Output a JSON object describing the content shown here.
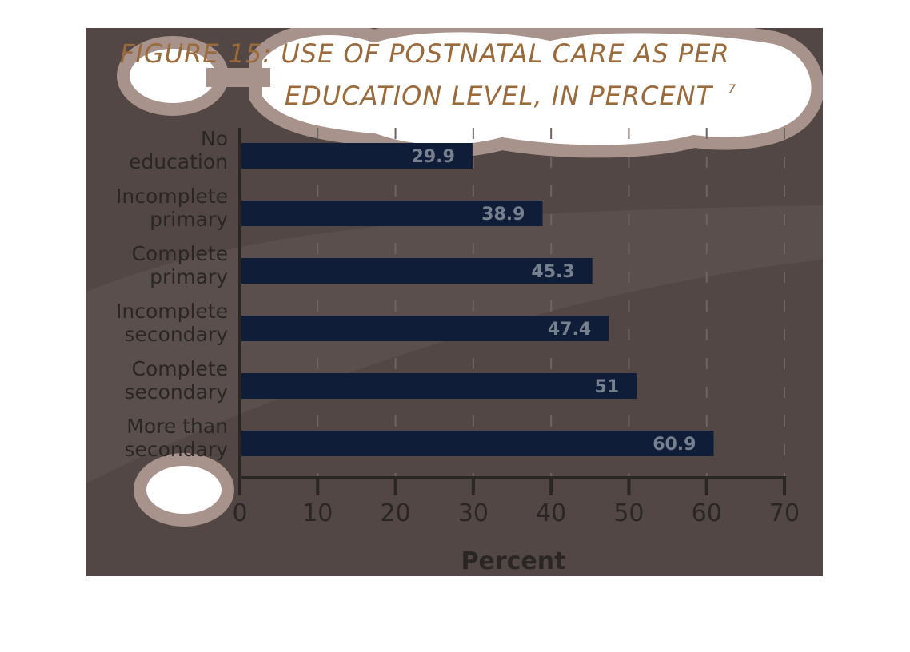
{
  "figure": {
    "title_line1": "FIGURE 15: USE OF POSTNATAL CARE AS PER",
    "title_line2": "EDUCATION LEVEL, IN PERCENT",
    "title_footnote": "7"
  },
  "colors": {
    "background": "#524744",
    "bar": "#0f1d38",
    "bar_label": "#76808e",
    "title": "#9a6a3a",
    "cloud_fill": "#ffffff",
    "cloud_border": "#a8928c"
  },
  "chart_data": {
    "type": "bar",
    "orientation": "horizontal",
    "categories": [
      [
        "No",
        "education"
      ],
      [
        "Incomplete",
        "primary"
      ],
      [
        "Complete",
        "primary"
      ],
      [
        "Incomplete",
        "secondary"
      ],
      [
        "Complete",
        "secondary"
      ],
      [
        "More than",
        "secondary"
      ]
    ],
    "values": [
      29.9,
      38.9,
      45.3,
      47.4,
      51,
      60.9
    ],
    "value_labels": [
      "29.9",
      "38.9",
      "45.3",
      "47.4",
      "51",
      "60.9"
    ],
    "title": "FIGURE 15: USE OF POSTNATAL CARE AS PER EDUCATION LEVEL, IN PERCENT",
    "xlabel": "Percent",
    "ylabel": "",
    "xlim": [
      0,
      70
    ],
    "xticks": [
      0,
      10,
      20,
      30,
      40,
      50,
      60,
      70
    ],
    "grid": "vertical dashed"
  }
}
